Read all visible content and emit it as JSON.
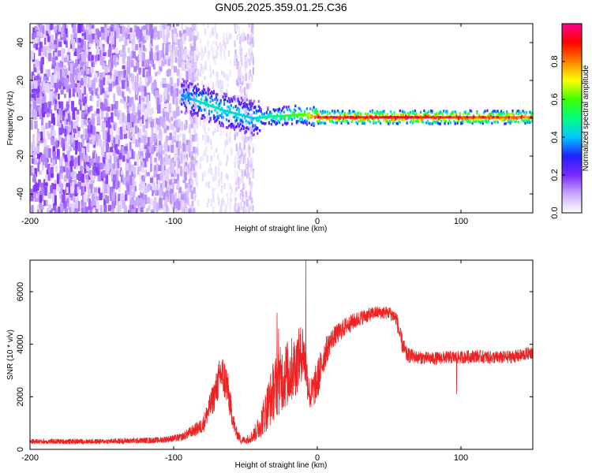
{
  "title": "GN05.2025.359.01.25.C36",
  "chart_data": [
    {
      "type": "heatmap",
      "xlabel": "Height of straight line (km)",
      "ylabel": "Frequency (Hz)",
      "xlim": [
        -200,
        150
      ],
      "ylim": [
        -50,
        50
      ],
      "x_ticks": [
        -200,
        -100,
        0,
        100
      ],
      "y_ticks": [
        -40,
        -20,
        0,
        20,
        40
      ],
      "colorbar": {
        "label": "Normalized spectral amplitude",
        "range": [
          0,
          1
        ],
        "ticks": [
          "0.0",
          "0.2",
          "0.4",
          "0.6",
          "0.8"
        ],
        "colors": [
          "#ffffff",
          "#c8a8ff",
          "#7c28ff",
          "#2020ff",
          "#00c8ff",
          "#00ff80",
          "#40ff00",
          "#ffff00",
          "#ff8000",
          "#ff0000",
          "#ff0090"
        ]
      },
      "noise_region": {
        "x": [
          -200,
          -85
        ],
        "y": [
          -50,
          50
        ],
        "level": 0.1
      },
      "noise_band": {
        "x": [
          -58,
          -45
        ],
        "y": [
          -50,
          50
        ],
        "level": 0.05
      },
      "doppler_track": [
        {
          "x": -95,
          "f": 12,
          "level": 0.35
        },
        {
          "x": -80,
          "f": 8,
          "level": 0.45
        },
        {
          "x": -65,
          "f": 4,
          "level": 0.45
        },
        {
          "x": -45,
          "f": 0,
          "level": 0.4
        },
        {
          "x": -30,
          "f": 1,
          "level": 0.5
        },
        {
          "x": -10,
          "f": 2,
          "level": 0.6
        },
        {
          "x": 0,
          "f": 0.5,
          "level": 0.85
        },
        {
          "x": 50,
          "f": 0.5,
          "level": 0.9
        },
        {
          "x": 100,
          "f": 0.5,
          "level": 0.85
        },
        {
          "x": 150,
          "f": 0.5,
          "level": 0.8
        }
      ]
    },
    {
      "type": "line",
      "xlabel": "Height of straight line (km)",
      "ylabel": "SNR (10 * v/v)",
      "xlim": [
        -200,
        150
      ],
      "ylim": [
        0,
        7200
      ],
      "x_ticks": [
        -200,
        -100,
        0,
        100
      ],
      "y_ticks": [
        0,
        2000,
        4000,
        6000
      ],
      "color": "#ee2222",
      "series": [
        {
          "x": [
            -200,
            -150,
            -110,
            -95,
            -80,
            -72,
            -67,
            -63,
            -60,
            -57,
            -53,
            -50,
            -45,
            -40,
            -35,
            -30,
            -25,
            -20,
            -15,
            -10,
            -5,
            0,
            5,
            10,
            20,
            30,
            40,
            50,
            55,
            58,
            62,
            70,
            80,
            90,
            100,
            110,
            120,
            130,
            140,
            150
          ],
          "y": [
            300,
            300,
            350,
            450,
            900,
            2000,
            2900,
            2500,
            1500,
            700,
            350,
            350,
            500,
            900,
            1600,
            2300,
            2700,
            2900,
            3200,
            3800,
            2000,
            2600,
            3600,
            4200,
            4700,
            5000,
            5200,
            5200,
            5000,
            4200,
            3600,
            3500,
            3450,
            3500,
            3500,
            3550,
            3500,
            3500,
            3550,
            3700
          ],
          "noise_amplitude": [
            100,
            100,
            120,
            150,
            300,
            600,
            800,
            800,
            500,
            250,
            150,
            150,
            250,
            500,
            900,
            1200,
            1300,
            1300,
            1200,
            1100,
            600,
            800,
            600,
            400,
            350,
            300,
            250,
            250,
            300,
            400,
            300,
            250,
            250,
            250,
            250,
            250,
            250,
            250,
            250,
            250
          ]
        }
      ],
      "spikes": [
        {
          "x": -8,
          "y": 7200
        },
        {
          "x": -28,
          "y": 5200
        },
        {
          "x": -27,
          "y": 4600
        },
        {
          "x": 97,
          "y": 2100
        }
      ]
    }
  ]
}
